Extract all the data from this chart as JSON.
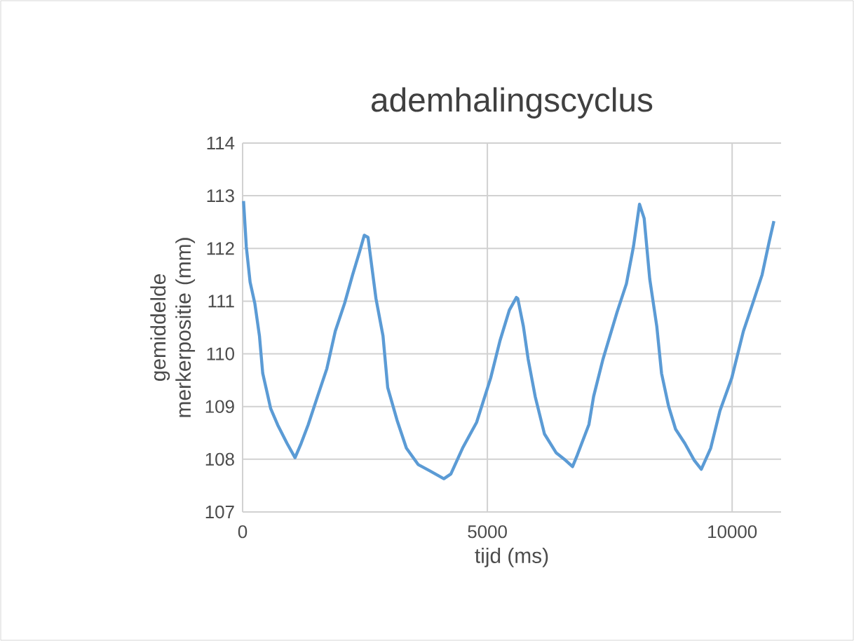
{
  "chart_data": {
    "type": "line",
    "title": "ademhalingscyclus",
    "xlabel": "tijd (ms)",
    "ylabel": "gemiddelde merkerpositie (mm)",
    "xlim": [
      0,
      11000
    ],
    "xticks": [
      0,
      5000,
      10000
    ],
    "ylim": [
      107,
      114
    ],
    "yticks": [
      107,
      108,
      109,
      110,
      111,
      112,
      113,
      114
    ],
    "grid": true,
    "series": [
      {
        "color": "#5b9bd5",
        "x": [
          19,
          76,
          153,
          249,
          344,
          411,
          497,
          574,
          717,
          908,
          1071,
          1195,
          1338,
          1530,
          1721,
          1893,
          2084,
          2247,
          2390,
          2486,
          2562,
          2724,
          2868,
          2964,
          3155,
          3346,
          3585,
          3824,
          4111,
          4254,
          4493,
          4780,
          5067,
          5258,
          5449,
          5593,
          5621,
          5736,
          5833,
          5977,
          6166,
          6407,
          6597,
          6740,
          6837,
          7075,
          7170,
          7362,
          7649,
          7840,
          7985,
          8108,
          8203,
          8317,
          8461,
          8558,
          8701,
          8845,
          9034,
          9226,
          9370,
          9562,
          9751,
          9992,
          10230,
          10422,
          10612,
          10755,
          10853
        ],
        "values": [
          112.9,
          112.03,
          111.36,
          110.96,
          110.34,
          109.63,
          109.28,
          108.96,
          108.65,
          108.3,
          108.03,
          108.3,
          108.65,
          109.19,
          109.72,
          110.43,
          110.96,
          111.5,
          111.94,
          112.25,
          112.21,
          111.05,
          110.34,
          109.36,
          108.74,
          108.21,
          107.9,
          107.78,
          107.63,
          107.72,
          108.21,
          108.7,
          109.54,
          110.25,
          110.83,
          111.07,
          111.05,
          110.52,
          109.9,
          109.19,
          108.48,
          108.12,
          107.98,
          107.86,
          108.08,
          108.66,
          109.19,
          109.9,
          110.79,
          111.33,
          112.04,
          112.84,
          112.57,
          111.42,
          110.52,
          109.63,
          109.01,
          108.57,
          108.3,
          107.98,
          107.81,
          108.21,
          108.92,
          109.54,
          110.43,
          110.96,
          111.5,
          112.12,
          112.52
        ]
      }
    ]
  }
}
